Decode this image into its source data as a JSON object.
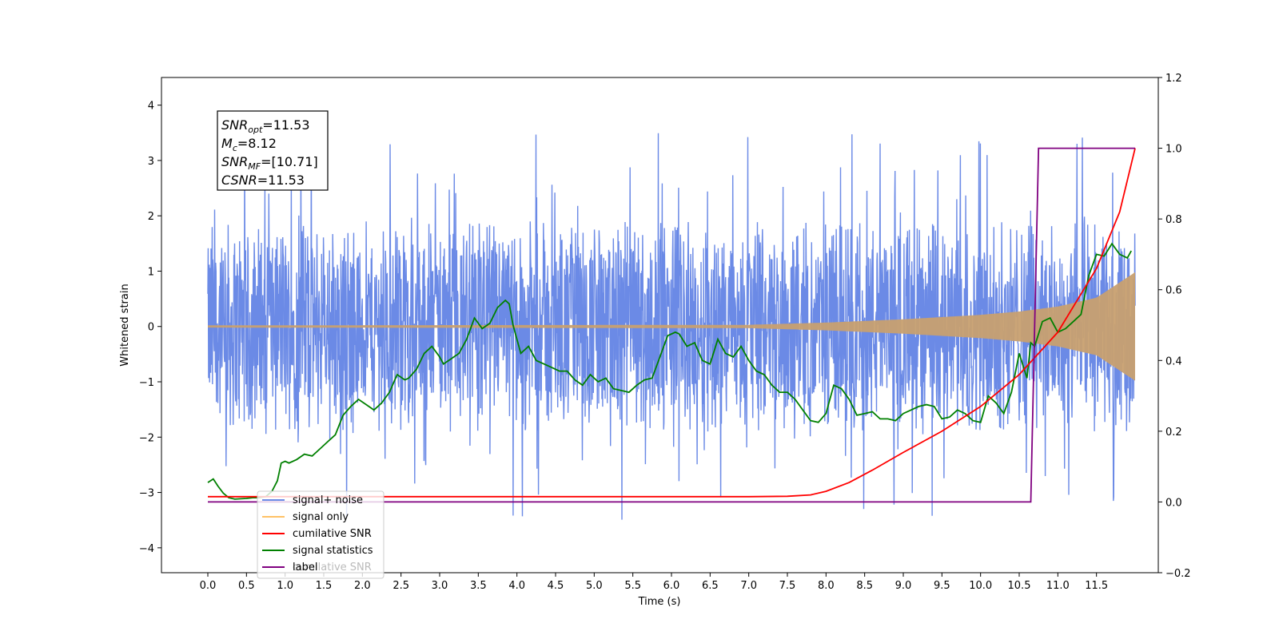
{
  "chart_data": {
    "type": "line",
    "title": "",
    "xlabel": "Time (s)",
    "ylabel": "Whitened strain",
    "y2label": "",
    "xlim": [
      -0.6,
      12.3
    ],
    "ylim": [
      -4.45,
      4.5
    ],
    "y2lim": [
      -0.2,
      1.2
    ],
    "xticks": [
      "0.0",
      "0.5",
      "1.0",
      "1.5",
      "2.0",
      "2.5",
      "3.0",
      "3.5",
      "4.0",
      "4.5",
      "5.0",
      "5.5",
      "6.0",
      "6.5",
      "7.0",
      "7.5",
      "8.0",
      "8.5",
      "9.0",
      "9.5",
      "10.0",
      "10.5",
      "11.0",
      "11.5"
    ],
    "yticks": [
      "4",
      "3",
      "2",
      "1",
      "0",
      "−1",
      "−2",
      "−3",
      "−4"
    ],
    "y2ticks": [
      "1.2",
      "1.0",
      "0.8",
      "0.6",
      "0.4",
      "0.2",
      "0.0",
      "−0.2"
    ],
    "legend_position": "lower-left",
    "annotation": {
      "lines": [
        {
          "sym": "SNR",
          "sub": "opt",
          "rest": "=11.53"
        },
        {
          "sym": "M",
          "sub": "c",
          "rest": "=8.12"
        },
        {
          "sym": "SNR",
          "sub": "MF",
          "rest": "=[10.71]"
        },
        {
          "sym": "CSNR",
          "sub": "",
          "rest": "=11.53"
        }
      ]
    },
    "legend": [
      {
        "label": "signal+ noise",
        "color": "#6b8ae6"
      },
      {
        "label": "signal only",
        "color": "#ffc266"
      },
      {
        "label": "cumilative SNR",
        "color": "#ff0000"
      },
      {
        "label": "signal statistics",
        "color": "#008000"
      },
      {
        "label": "label",
        "color": "#800080"
      }
    ],
    "legend_ghost_text": "cumilative SNR",
    "series": [
      {
        "name": "signal+ noise",
        "axis": "left",
        "color": "#6b8ae6",
        "x_range": [
          0.0,
          12.0
        ],
        "envelope": [
          -1.9,
          1.9
        ],
        "spike_max": [
          4.12,
          4.05,
          3.85,
          3.6,
          3.55,
          3.5
        ],
        "spike_min": [
          -4.0,
          -3.8,
          -3.5,
          -3.3,
          -3.2
        ]
      },
      {
        "name": "signal only",
        "axis": "left",
        "color": "#c8a070",
        "x": [
          0.0,
          7.0,
          8.0,
          9.0,
          10.0,
          10.5,
          11.0,
          11.5,
          12.0
        ],
        "amplitude": [
          0.02,
          0.03,
          0.07,
          0.13,
          0.21,
          0.27,
          0.36,
          0.52,
          0.98
        ]
      },
      {
        "name": "cumilative SNR",
        "axis": "right",
        "color": "#ff0000",
        "x": [
          0.0,
          7.0,
          7.5,
          7.8,
          8.0,
          8.3,
          8.6,
          9.0,
          9.5,
          10.0,
          10.5,
          11.0,
          11.5,
          11.8,
          12.0
        ],
        "y": [
          0.015,
          0.015,
          0.016,
          0.02,
          0.03,
          0.055,
          0.09,
          0.14,
          0.2,
          0.27,
          0.36,
          0.48,
          0.66,
          0.82,
          1.0
        ]
      },
      {
        "name": "signal statistics",
        "axis": "right",
        "color": "#008000",
        "x": [
          0.0,
          0.07,
          0.13,
          0.2,
          0.27,
          0.35,
          0.43,
          0.5,
          0.58,
          0.66,
          0.75,
          0.83,
          0.9,
          0.95,
          1.0,
          1.05,
          1.15,
          1.25,
          1.35,
          1.45,
          1.55,
          1.65,
          1.75,
          1.85,
          1.95,
          2.05,
          2.15,
          2.25,
          2.35,
          2.45,
          2.55,
          2.6,
          2.7,
          2.8,
          2.9,
          3.0,
          3.05,
          3.15,
          3.25,
          3.35,
          3.45,
          3.55,
          3.65,
          3.75,
          3.85,
          3.9,
          3.95,
          4.05,
          4.15,
          4.25,
          4.35,
          4.45,
          4.55,
          4.65,
          4.75,
          4.85,
          4.95,
          5.05,
          5.15,
          5.25,
          5.35,
          5.45,
          5.55,
          5.65,
          5.75,
          5.85,
          5.95,
          6.05,
          6.1,
          6.2,
          6.3,
          6.4,
          6.5,
          6.6,
          6.7,
          6.8,
          6.9,
          7.0,
          7.1,
          7.2,
          7.3,
          7.4,
          7.5,
          7.6,
          7.7,
          7.8,
          7.9,
          8.0,
          8.1,
          8.2,
          8.3,
          8.4,
          8.5,
          8.6,
          8.7,
          8.8,
          8.9,
          9.0,
          9.1,
          9.2,
          9.3,
          9.4,
          9.5,
          9.6,
          9.7,
          9.8,
          9.9,
          10.0,
          10.1,
          10.2,
          10.3,
          10.4,
          10.5,
          10.6,
          10.65,
          10.7,
          10.8,
          10.9,
          11.0,
          11.1,
          11.2,
          11.3,
          11.4,
          11.5,
          11.6,
          11.7,
          11.8,
          11.9,
          11.95
        ],
        "y": [
          0.055,
          0.065,
          0.045,
          0.025,
          0.012,
          0.008,
          0.009,
          0.01,
          0.012,
          0.012,
          0.015,
          0.03,
          0.06,
          0.11,
          0.115,
          0.11,
          0.12,
          0.135,
          0.13,
          0.15,
          0.17,
          0.19,
          0.245,
          0.27,
          0.29,
          0.275,
          0.26,
          0.28,
          0.31,
          0.36,
          0.345,
          0.35,
          0.375,
          0.42,
          0.44,
          0.41,
          0.39,
          0.405,
          0.42,
          0.46,
          0.52,
          0.49,
          0.505,
          0.55,
          0.57,
          0.56,
          0.5,
          0.42,
          0.44,
          0.4,
          0.39,
          0.38,
          0.37,
          0.37,
          0.345,
          0.33,
          0.36,
          0.34,
          0.35,
          0.32,
          0.315,
          0.31,
          0.33,
          0.345,
          0.35,
          0.41,
          0.47,
          0.48,
          0.475,
          0.44,
          0.45,
          0.4,
          0.39,
          0.46,
          0.42,
          0.41,
          0.44,
          0.4,
          0.37,
          0.36,
          0.33,
          0.31,
          0.31,
          0.29,
          0.26,
          0.23,
          0.225,
          0.25,
          0.33,
          0.32,
          0.29,
          0.245,
          0.25,
          0.255,
          0.235,
          0.235,
          0.23,
          0.25,
          0.26,
          0.27,
          0.275,
          0.27,
          0.235,
          0.24,
          0.26,
          0.25,
          0.23,
          0.225,
          0.3,
          0.28,
          0.25,
          0.31,
          0.42,
          0.35,
          0.45,
          0.44,
          0.51,
          0.52,
          0.48,
          0.49,
          0.51,
          0.53,
          0.64,
          0.7,
          0.695,
          0.73,
          0.7,
          0.69,
          0.71
        ],
        "y_fix_note": ""
      },
      {
        "name": "label",
        "axis": "right",
        "color": "#800080",
        "x": [
          0.0,
          10.65,
          10.75,
          12.0
        ],
        "y": [
          0.0,
          0.0,
          1.0,
          1.0
        ]
      }
    ]
  }
}
